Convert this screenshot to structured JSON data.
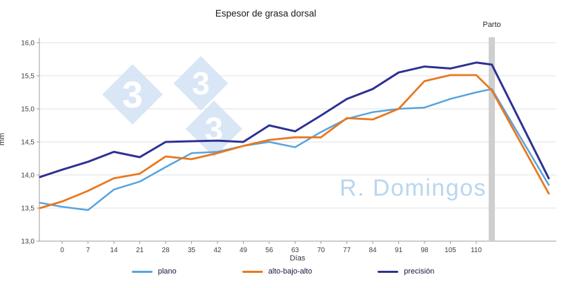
{
  "watermark": {
    "brand": "R. Domingos",
    "logo_glyph": "3"
  },
  "chart_data": {
    "type": "line",
    "title": "Espesor de grasa dorsal",
    "xlabel": "Días",
    "ylabel": "mm",
    "ylim": [
      13.0,
      16.0
    ],
    "grid": true,
    "legend_position": "bottom",
    "ytick_values": [
      13.0,
      13.5,
      14.0,
      14.5,
      15.0,
      15.5,
      16.0
    ],
    "ytick_labels": [
      "13,0",
      "13,5",
      "14,0",
      "14,5",
      "15,0",
      "15,5",
      "16,0"
    ],
    "xtick_days": [
      0,
      7,
      14,
      21,
      28,
      35,
      42,
      49,
      56,
      63,
      70,
      77,
      84,
      91,
      98,
      105,
      110
    ],
    "annotation": {
      "label": "Parto",
      "day": 113
    },
    "x_days": [
      -6,
      0,
      7,
      14,
      21,
      28,
      35,
      42,
      49,
      56,
      63,
      70,
      77,
      84,
      91,
      98,
      105,
      110,
      113,
      124
    ],
    "series": [
      {
        "name": "plano",
        "color": "#55A3DE",
        "width": 2.5,
        "values": [
          13.58,
          13.52,
          13.47,
          13.78,
          13.9,
          14.12,
          14.33,
          14.35,
          14.44,
          14.5,
          14.42,
          14.65,
          14.85,
          14.95,
          15.0,
          15.02,
          15.15,
          15.25,
          15.3,
          13.85
        ]
      },
      {
        "name": "alto-bajo-alto",
        "color": "#E8781E",
        "width": 2.8,
        "values": [
          13.5,
          13.6,
          13.76,
          13.95,
          14.02,
          14.28,
          14.24,
          14.33,
          14.44,
          14.53,
          14.57,
          14.57,
          14.86,
          14.84,
          15.0,
          15.42,
          15.51,
          15.51,
          15.28,
          13.72
        ]
      },
      {
        "name": "precisión",
        "color": "#2E3192",
        "width": 3,
        "values": [
          13.97,
          14.08,
          14.2,
          14.35,
          14.27,
          14.5,
          14.51,
          14.52,
          14.5,
          14.75,
          14.66,
          14.9,
          15.15,
          15.3,
          15.55,
          15.64,
          15.61,
          15.7,
          15.67,
          13.95
        ]
      }
    ]
  }
}
